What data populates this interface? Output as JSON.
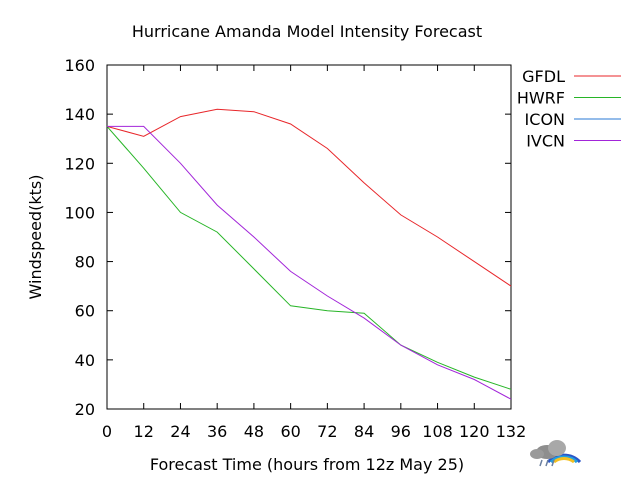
{
  "chart_data": {
    "type": "line",
    "title": "Hurricane Amanda Model Intensity Forecast",
    "xlabel": "Forecast Time (hours from 12z May 25)",
    "ylabel": "Windspeed(kts)",
    "xlim": [
      0,
      132
    ],
    "ylim": [
      20,
      160
    ],
    "x_ticks": [
      0,
      12,
      24,
      36,
      48,
      60,
      72,
      84,
      96,
      108,
      120,
      132
    ],
    "y_ticks": [
      20,
      40,
      60,
      80,
      100,
      120,
      140,
      160
    ],
    "grid": false,
    "legend_position": "right",
    "series": [
      {
        "name": "GFDL",
        "color": "#e8262a",
        "x": [
          0,
          12,
          24,
          36,
          48,
          60,
          72,
          84,
          96,
          108,
          120,
          132
        ],
        "y": [
          135,
          131,
          139,
          142,
          141,
          136,
          126,
          112,
          99,
          90,
          80,
          70
        ]
      },
      {
        "name": "HWRF",
        "color": "#27b527",
        "x": [
          0,
          12,
          24,
          36,
          48,
          60,
          72,
          84,
          96,
          108,
          120,
          132
        ],
        "y": [
          135,
          118,
          100,
          92,
          77,
          62,
          60,
          59,
          46,
          39,
          33,
          28
        ]
      },
      {
        "name": "ICON",
        "color": "#2a7ad6",
        "x": [],
        "y": []
      },
      {
        "name": "IVCN",
        "color": "#a225d9",
        "x": [
          0,
          12,
          24,
          36,
          48,
          60,
          72,
          84,
          96,
          108,
          120,
          132
        ],
        "y": [
          135,
          135,
          120,
          103,
          90,
          76,
          66,
          57,
          46,
          38,
          32,
          24
        ]
      }
    ]
  },
  "logo": {
    "icon": "weather-cloud-rainbow-icon"
  }
}
